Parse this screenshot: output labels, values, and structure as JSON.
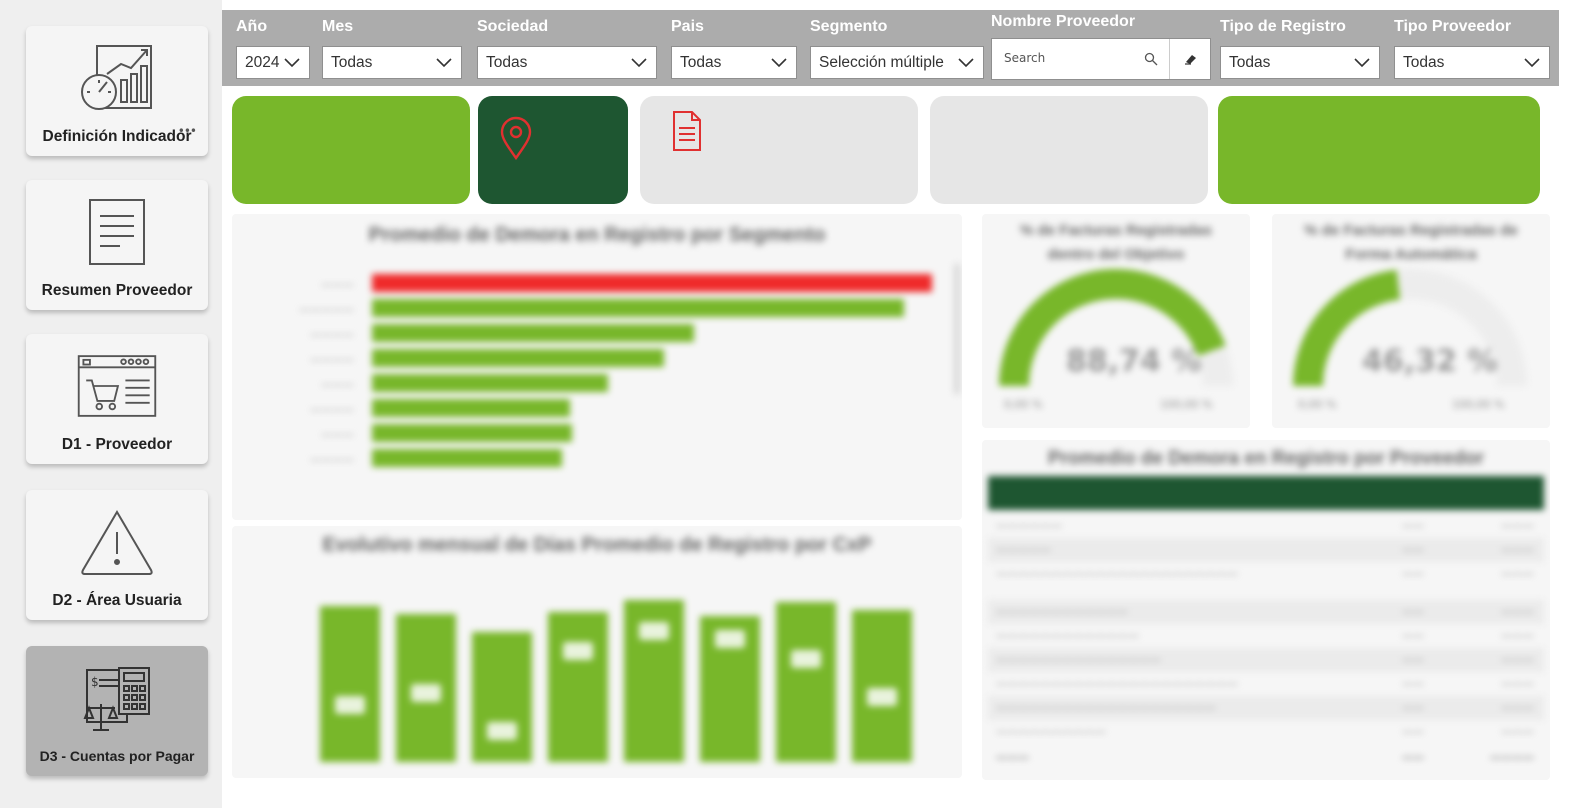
{
  "nav": {
    "items": [
      {
        "label": "Definición Indicador",
        "icon": "gauge-report-icon",
        "active": false
      },
      {
        "label": "Resumen Proveedor",
        "icon": "document-icon",
        "active": false
      },
      {
        "label": "D1 - Proveedor",
        "icon": "shopping-cart-window-icon",
        "active": false
      },
      {
        "label": "D2 - Área Usuaria",
        "icon": "warning-triangle-icon",
        "active": false
      },
      {
        "label": "D3 - Cuentas por Pagar",
        "icon": "accounting-calculator-icon",
        "active": true
      }
    ],
    "more_label": "•••"
  },
  "filters": {
    "anio": {
      "label": "Año",
      "value": "2024"
    },
    "mes": {
      "label": "Mes",
      "value": "Todas"
    },
    "sociedad": {
      "label": "Sociedad",
      "value": "Todas"
    },
    "pais": {
      "label": "Pais",
      "value": "Todas"
    },
    "segmento": {
      "label": "Segmento",
      "value": "Selección múltiple"
    },
    "proveedor": {
      "label": "Nombre Proveedor",
      "placeholder": "Search"
    },
    "tipo_registro": {
      "label": "Tipo de Registro",
      "value": "Todas"
    },
    "tipo_proveedor": {
      "label": "Tipo Proveedor",
      "value": "Todas"
    }
  },
  "colors": {
    "green": "#78b72a",
    "dark_green": "#1e5631",
    "red": "#ef2b2b",
    "filter_bar": "#acacac"
  },
  "panels": {
    "segment_chart_title": "Promedio de Demora en Registro por Segmento",
    "monthly_chart_title": "Evolutivo mensual de Días Promedio de Registro por CxP",
    "gauge1": {
      "title_line1": "% de Facturas Registradas",
      "title_line2": "dentro del Objetivo",
      "value": "88,74 %",
      "min": "0,00 %",
      "max": "100,00 %",
      "fraction": 0.8874
    },
    "gauge2": {
      "title_line1": "% de Facturas Registradas de",
      "title_line2": "Forma Automática",
      "value": "46,32 %",
      "min": "0,00 %",
      "max": "100,00 %",
      "fraction": 0.4632
    },
    "table_title": "Promedio de Demora en Registro por Proveedor"
  }
}
